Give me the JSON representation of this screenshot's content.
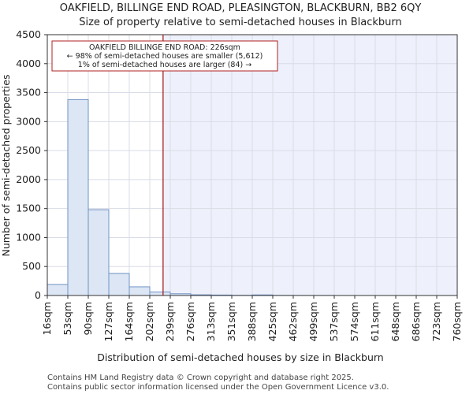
{
  "chart_data": {
    "type": "bar",
    "title_line1": "OAKFIELD, BILLINGE END ROAD, PLEASINGTON, BLACKBURN, BB2 6QY",
    "title_line2": "Size of property relative to semi-detached houses in Blackburn",
    "xlabel": "Distribution of semi-detached houses by size in Blackburn",
    "ylabel": "Number of semi-detached properties",
    "ylim": [
      0,
      4500
    ],
    "y_ticks": [
      0,
      500,
      1000,
      1500,
      2000,
      2500,
      3000,
      3500,
      4000,
      4500
    ],
    "bin_edges": [
      16,
      53,
      90,
      127,
      164,
      202,
      239,
      276,
      313,
      351,
      388,
      425,
      462,
      499,
      537,
      574,
      611,
      648,
      686,
      723,
      760
    ],
    "x_tick_labels": [
      "16sqm",
      "53sqm",
      "90sqm",
      "127sqm",
      "164sqm",
      "202sqm",
      "239sqm",
      "276sqm",
      "313sqm",
      "351sqm",
      "388sqm",
      "425sqm",
      "462sqm",
      "499sqm",
      "537sqm",
      "574sqm",
      "611sqm",
      "648sqm",
      "686sqm",
      "723sqm",
      "760sqm"
    ],
    "values": [
      190,
      3380,
      1480,
      380,
      150,
      60,
      30,
      12,
      8,
      3,
      10,
      2,
      1,
      1,
      0,
      0,
      0,
      0,
      0,
      0
    ],
    "marker": {
      "value": 226,
      "line1": "OAKFIELD BILLINGE END ROAD: 226sqm",
      "line2": "← 98% of semi-detached houses are smaller (5,612)",
      "line3": "1% of semi-detached houses are larger (84) →"
    },
    "colors": {
      "bar_fill": "#dce6f4",
      "bar_edge": "#7092c4",
      "highlight_bg": "#eef1fb",
      "marker_line": "#a01010",
      "annot_border": "#b02020",
      "grid": "#d9dce6"
    }
  },
  "footer": {
    "line1": "Contains HM Land Registry data © Crown copyright and database right 2025.",
    "line2": "Contains public sector information licensed under the Open Government Licence v3.0."
  }
}
